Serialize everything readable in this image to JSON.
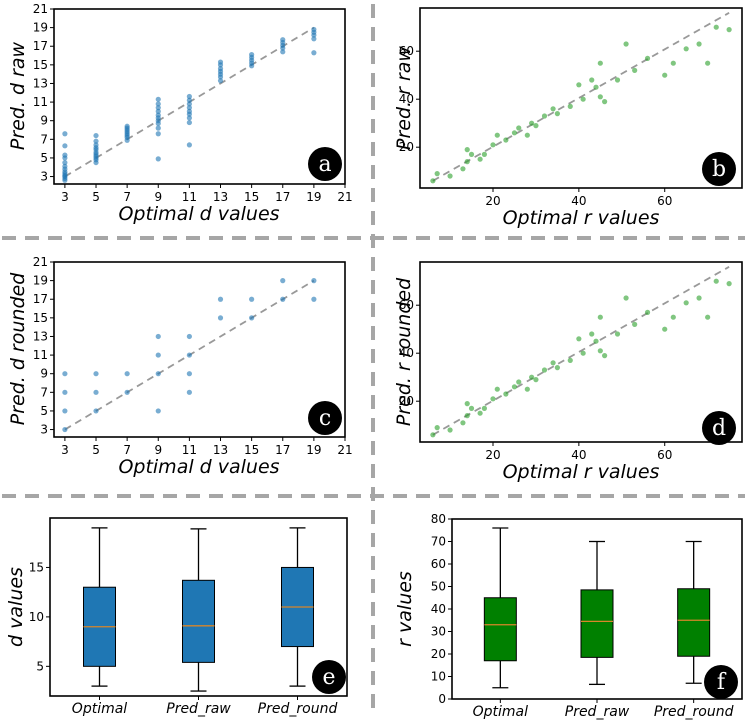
{
  "colors": {
    "blue": "#1f77b4",
    "green": "#2ca02c",
    "box_green": "#008000",
    "median": "#d8862a",
    "diag": "#999999",
    "sep": "#a6a6a6"
  },
  "chart_data": [
    {
      "id": "a",
      "type": "scatter",
      "letter": "a",
      "xlabel": "Optimal d values",
      "ylabel": "Pred. d raw",
      "xlim": [
        2.3,
        21
      ],
      "ylim": [
        2.2,
        21
      ],
      "xticks": [
        3,
        5,
        7,
        9,
        11,
        13,
        15,
        17,
        19,
        21
      ],
      "yticks": [
        3,
        5,
        7,
        9,
        11,
        13,
        15,
        17,
        19,
        21
      ],
      "diagonal": [
        [
          3,
          3
        ],
        [
          19,
          19
        ]
      ],
      "series": [
        {
          "color": "blue",
          "groups": [
            {
              "x": 3,
              "y": [
                2.6,
                2.8,
                3.0,
                3.1,
                3.3,
                3.5,
                3.8,
                4.1,
                4.5,
                5.0,
                5.3,
                6.3,
                7.6
              ]
            },
            {
              "x": 5,
              "y": [
                4.5,
                4.8,
                5.0,
                5.2,
                5.4,
                5.6,
                5.9,
                6.1,
                6.4,
                6.8,
                7.4
              ]
            },
            {
              "x": 7,
              "y": [
                6.9,
                7.2,
                7.4,
                7.6,
                7.8,
                8.0,
                8.2,
                8.4
              ]
            },
            {
              "x": 9,
              "y": [
                4.9,
                7.6,
                8.2,
                8.7,
                9.0,
                9.3,
                9.6,
                10.0,
                10.4,
                10.8,
                11.3
              ]
            },
            {
              "x": 11,
              "y": [
                6.4,
                8.8,
                9.3,
                9.7,
                10.0,
                10.4,
                10.8,
                11.2,
                11.6
              ]
            },
            {
              "x": 13,
              "y": [
                13.3,
                13.7,
                14.0,
                14.3,
                14.6,
                15.0,
                15.3
              ]
            },
            {
              "x": 15,
              "y": [
                14.9,
                15.2,
                15.5,
                15.8,
                16.1
              ]
            },
            {
              "x": 17,
              "y": [
                16.4,
                16.8,
                17.1,
                17.4,
                17.7
              ]
            },
            {
              "x": 19,
              "y": [
                16.3,
                17.8,
                18.2,
                18.5,
                18.8
              ]
            }
          ]
        }
      ]
    },
    {
      "id": "b",
      "type": "scatter",
      "letter": "b",
      "xlabel": "Optimal r values",
      "ylabel": "Pred. r raw",
      "xlim": [
        3,
        78
      ],
      "ylim": [
        3,
        78
      ],
      "xticks": [
        20,
        40,
        60
      ],
      "yticks": [
        20,
        40,
        60
      ],
      "diagonal": [
        [
          6,
          6
        ],
        [
          75,
          76
        ]
      ],
      "series": [
        {
          "color": "green",
          "points": [
            [
              6,
              6
            ],
            [
              7,
              9
            ],
            [
              10,
              8
            ],
            [
              13,
              11
            ],
            [
              14,
              14
            ],
            [
              14,
              19
            ],
            [
              15,
              17
            ],
            [
              17,
              15
            ],
            [
              18,
              17
            ],
            [
              20,
              21
            ],
            [
              21,
              25
            ],
            [
              23,
              23
            ],
            [
              25,
              26
            ],
            [
              26,
              28
            ],
            [
              28,
              25
            ],
            [
              29,
              30
            ],
            [
              30,
              29
            ],
            [
              32,
              33
            ],
            [
              34,
              36
            ],
            [
              35,
              34
            ],
            [
              38,
              37
            ],
            [
              40,
              46
            ],
            [
              41,
              40
            ],
            [
              43,
              48
            ],
            [
              44,
              45
            ],
            [
              45,
              41
            ],
            [
              45,
              55
            ],
            [
              46,
              39
            ],
            [
              49,
              48
            ],
            [
              51,
              63
            ],
            [
              53,
              52
            ],
            [
              56,
              57
            ],
            [
              60,
              50
            ],
            [
              62,
              55
            ],
            [
              65,
              61
            ],
            [
              68,
              63
            ],
            [
              70,
              55
            ],
            [
              72,
              70
            ],
            [
              75,
              69
            ]
          ]
        }
      ]
    },
    {
      "id": "c",
      "type": "scatter",
      "letter": "c",
      "xlabel": "Optimal d values",
      "ylabel": "Pred. d rounded",
      "xlim": [
        2.3,
        21
      ],
      "ylim": [
        2.2,
        21
      ],
      "xticks": [
        3,
        5,
        7,
        9,
        11,
        13,
        15,
        17,
        19,
        21
      ],
      "yticks": [
        3,
        5,
        7,
        9,
        11,
        13,
        15,
        17,
        19,
        21
      ],
      "diagonal": [
        [
          3,
          3
        ],
        [
          19,
          19
        ]
      ],
      "series": [
        {
          "color": "blue",
          "groups": [
            {
              "x": 3,
              "y": [
                3,
                5,
                7,
                9
              ]
            },
            {
              "x": 5,
              "y": [
                5,
                7,
                9
              ]
            },
            {
              "x": 7,
              "y": [
                7,
                9
              ]
            },
            {
              "x": 9,
              "y": [
                5,
                9,
                11,
                13
              ]
            },
            {
              "x": 11,
              "y": [
                7,
                9,
                11,
                13
              ]
            },
            {
              "x": 13,
              "y": [
                15,
                17
              ]
            },
            {
              "x": 15,
              "y": [
                15,
                17
              ]
            },
            {
              "x": 17,
              "y": [
                17,
                19
              ]
            },
            {
              "x": 19,
              "y": [
                17,
                19
              ]
            }
          ]
        }
      ]
    },
    {
      "id": "d",
      "type": "scatter",
      "letter": "d",
      "xlabel": "Optimal r values",
      "ylabel": "Pred. r rounded",
      "xlim": [
        3,
        78
      ],
      "ylim": [
        3,
        78
      ],
      "xticks": [
        20,
        40,
        60
      ],
      "yticks": [
        20,
        40,
        60
      ],
      "diagonal": [
        [
          6,
          6
        ],
        [
          75,
          76
        ]
      ],
      "series": [
        {
          "color": "green",
          "points": [
            [
              6,
              6
            ],
            [
              7,
              9
            ],
            [
              10,
              8
            ],
            [
              13,
              11
            ],
            [
              14,
              14
            ],
            [
              14,
              19
            ],
            [
              15,
              17
            ],
            [
              17,
              15
            ],
            [
              18,
              17
            ],
            [
              20,
              21
            ],
            [
              21,
              25
            ],
            [
              23,
              23
            ],
            [
              25,
              26
            ],
            [
              26,
              28
            ],
            [
              28,
              25
            ],
            [
              29,
              30
            ],
            [
              30,
              29
            ],
            [
              32,
              33
            ],
            [
              34,
              36
            ],
            [
              35,
              34
            ],
            [
              38,
              37
            ],
            [
              40,
              46
            ],
            [
              41,
              40
            ],
            [
              43,
              48
            ],
            [
              44,
              45
            ],
            [
              45,
              41
            ],
            [
              45,
              55
            ],
            [
              46,
              39
            ],
            [
              49,
              48
            ],
            [
              51,
              63
            ],
            [
              53,
              52
            ],
            [
              56,
              57
            ],
            [
              60,
              50
            ],
            [
              62,
              55
            ],
            [
              65,
              61
            ],
            [
              68,
              63
            ],
            [
              70,
              55
            ],
            [
              72,
              70
            ],
            [
              75,
              69
            ]
          ]
        }
      ]
    },
    {
      "id": "e",
      "type": "box",
      "letter": "e",
      "xlabel": "",
      "ylabel": "d values",
      "ylim": [
        2,
        20
      ],
      "yticks": [
        5,
        10,
        15
      ],
      "categories": [
        "Optimal",
        "Pred_raw",
        "Pred_round"
      ],
      "color": "blue",
      "boxes": [
        {
          "min": 3,
          "q1": 5,
          "median": 9,
          "q3": 13,
          "max": 19
        },
        {
          "min": 2.5,
          "q1": 5.4,
          "median": 9.1,
          "q3": 13.7,
          "max": 18.9
        },
        {
          "min": 3,
          "q1": 7,
          "median": 11,
          "q3": 15,
          "max": 19
        }
      ]
    },
    {
      "id": "f",
      "type": "box",
      "letter": "f",
      "xlabel": "",
      "ylabel": "r values",
      "ylim": [
        0,
        80
      ],
      "yticks": [
        0,
        10,
        20,
        30,
        40,
        50,
        60,
        70,
        80
      ],
      "categories": [
        "Optimal",
        "Pred_raw",
        "Pred_round"
      ],
      "color": "box_green",
      "boxes": [
        {
          "min": 5,
          "q1": 17,
          "median": 33,
          "q3": 45,
          "max": 76
        },
        {
          "min": 6.5,
          "q1": 18.5,
          "median": 34.5,
          "q3": 48.5,
          "max": 70
        },
        {
          "min": 7,
          "q1": 19,
          "median": 35,
          "q3": 49,
          "max": 70
        }
      ]
    }
  ]
}
